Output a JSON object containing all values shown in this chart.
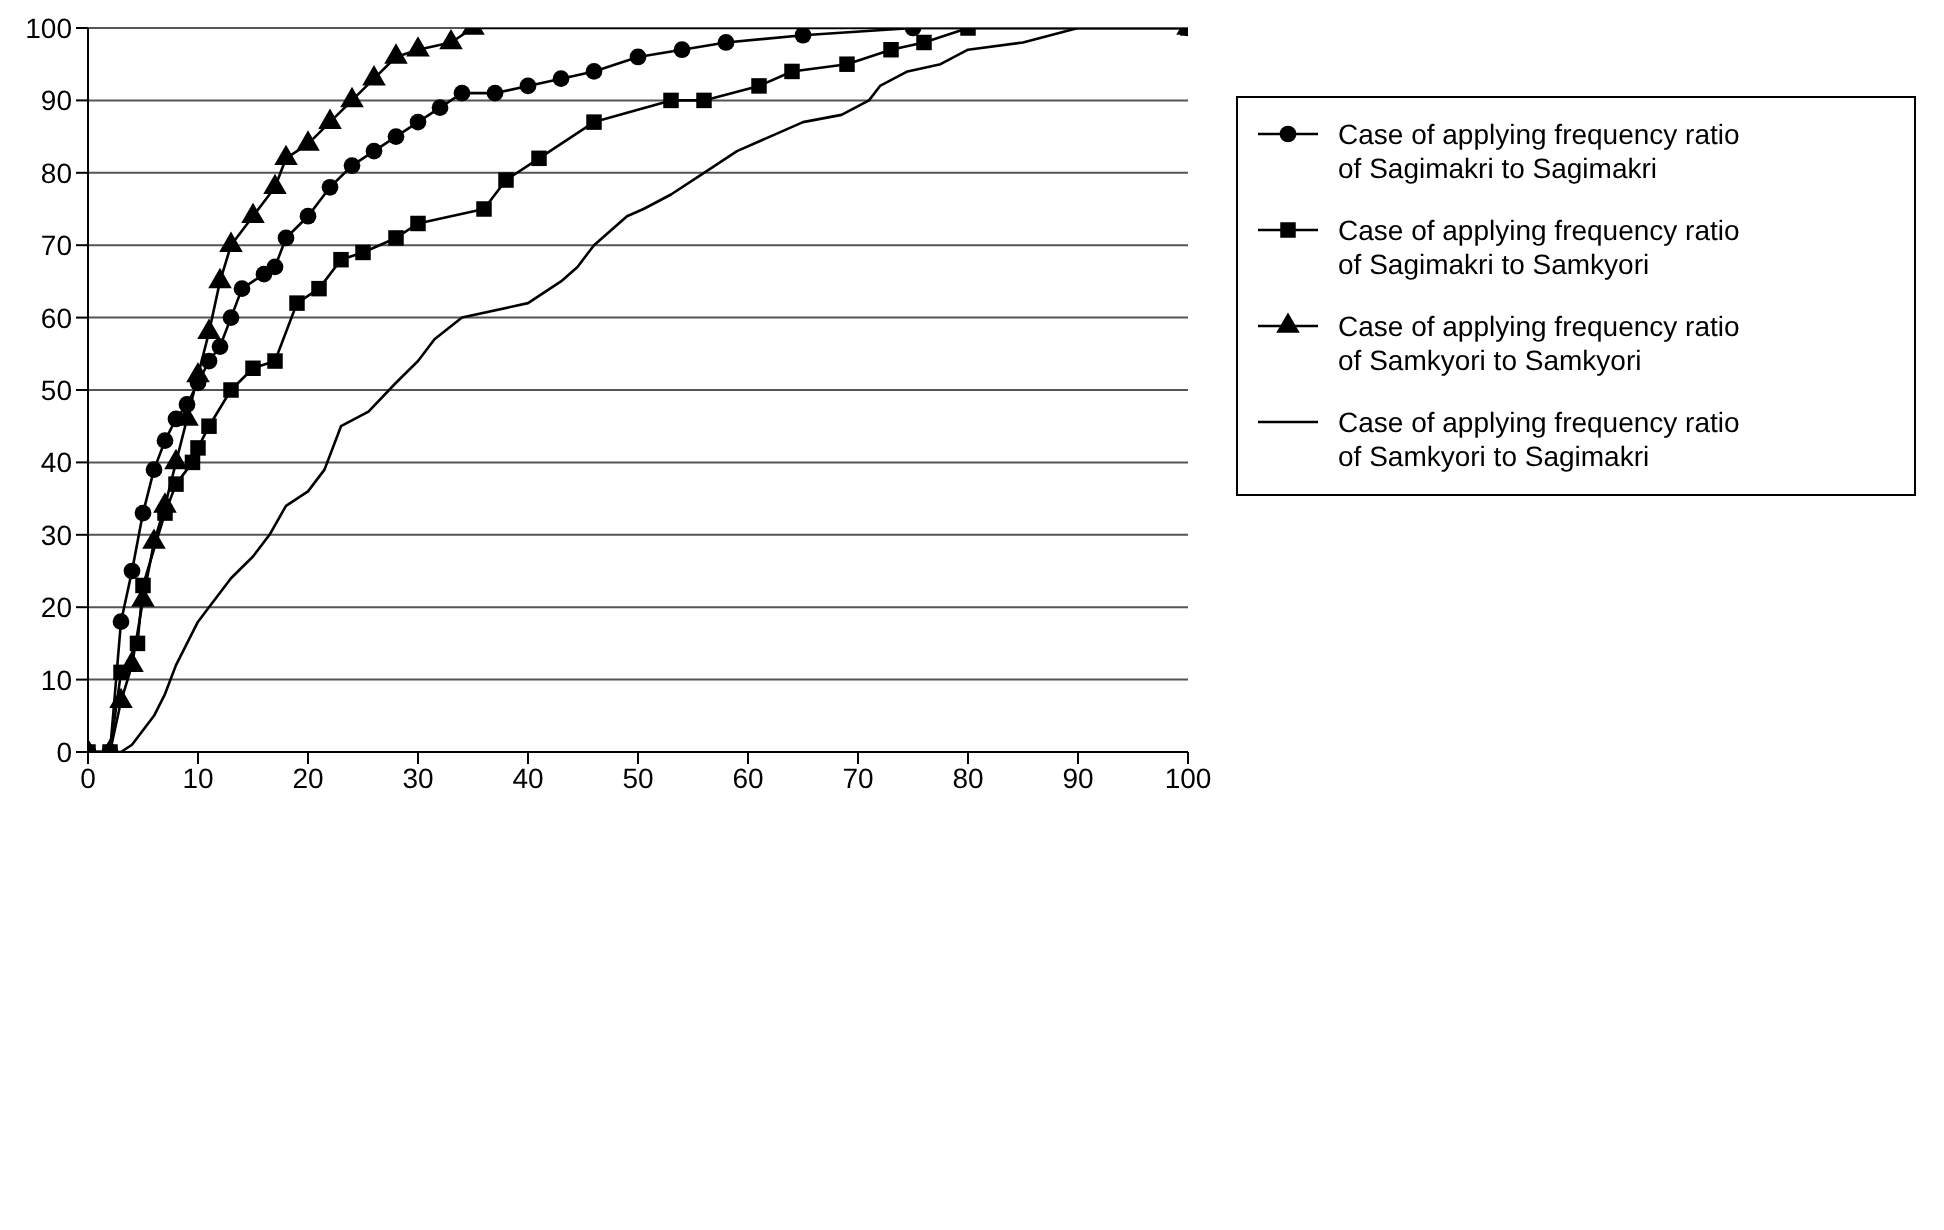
{
  "chart_data": {
    "type": "line",
    "xlim": [
      0,
      100
    ],
    "ylim": [
      0,
      100
    ],
    "xticks": [
      0,
      10,
      20,
      30,
      40,
      50,
      60,
      70,
      80,
      90,
      100
    ],
    "yticks": [
      0,
      10,
      20,
      30,
      40,
      50,
      60,
      70,
      80,
      90,
      100
    ],
    "grid": "y",
    "legend": "top right",
    "series": [
      {
        "name": "Case of applying frequency ratio of Sagimakri to Sagimakri",
        "color": "#000000",
        "marker": "circle",
        "x": [
          0,
          2,
          3,
          4,
          5,
          6,
          7,
          8,
          9,
          10,
          11,
          12,
          13,
          14,
          16,
          17,
          18,
          20,
          22,
          24,
          26,
          28,
          30,
          32,
          34,
          37,
          40,
          43,
          46,
          50,
          54,
          58,
          65,
          75,
          100
        ],
        "values": [
          0,
          0,
          18,
          25,
          33,
          39,
          43,
          46,
          48,
          51,
          54,
          56,
          60,
          64,
          66,
          67,
          71,
          74,
          78,
          81,
          83,
          85,
          87,
          89,
          91,
          91,
          92,
          93,
          94,
          96,
          97,
          98,
          99,
          100,
          100
        ]
      },
      {
        "name": "Case of applying frequency ratio of Sagimakri to Samkyori",
        "color": "#000000",
        "marker": "square",
        "x": [
          0,
          2,
          3,
          4.5,
          5,
          7,
          8,
          9.5,
          10,
          11,
          13,
          15,
          17,
          19,
          21,
          23,
          25,
          28,
          30,
          36,
          38,
          41,
          46,
          53,
          56,
          61,
          64,
          69,
          73,
          76,
          80,
          100
        ],
        "values": [
          0,
          0,
          11,
          15,
          23,
          33,
          37,
          40,
          42,
          45,
          50,
          53,
          54,
          62,
          64,
          68,
          69,
          71,
          73,
          75,
          79,
          82,
          87,
          90,
          90,
          92,
          94,
          95,
          97,
          98,
          100,
          100
        ]
      },
      {
        "name": "Case of applying frequency ratio of Samkyori to Samkyori",
        "color": "#000000",
        "marker": "triangle",
        "x": [
          0,
          2,
          3,
          4,
          5,
          6,
          7,
          8,
          9,
          10,
          11,
          12,
          13,
          15,
          17,
          18,
          20,
          22,
          24,
          26,
          28,
          30,
          33,
          35,
          100
        ],
        "values": [
          0,
          0,
          7,
          12,
          21,
          29,
          34,
          40,
          46,
          52,
          58,
          65,
          70,
          74,
          78,
          82,
          84,
          87,
          90,
          93,
          96,
          97,
          98,
          100,
          100
        ]
      },
      {
        "name": "Case of applying frequency ratio of Samkyori to Sagimakri",
        "color": "#000000",
        "marker": "none",
        "x": [
          0,
          3,
          4,
          5,
          6,
          7,
          8,
          9,
          10,
          11,
          13,
          15,
          16.5,
          18,
          20,
          21.5,
          23,
          25.5,
          28,
          30,
          31.5,
          34,
          40,
          43,
          44.5,
          46,
          49,
          50.5,
          53,
          56,
          59,
          62,
          65,
          68.5,
          71,
          72,
          74.5,
          77.5,
          80,
          85,
          87.5,
          90,
          100
        ],
        "values": [
          0,
          0,
          1,
          3,
          5,
          8,
          12,
          15,
          18,
          20,
          24,
          27,
          30,
          34,
          36,
          39,
          45,
          47,
          51,
          54,
          57,
          60,
          62,
          65,
          67,
          70,
          74,
          75,
          77,
          80,
          83,
          85,
          87,
          88,
          90,
          92,
          94,
          95,
          97,
          98,
          99,
          100,
          100
        ]
      }
    ]
  }
}
